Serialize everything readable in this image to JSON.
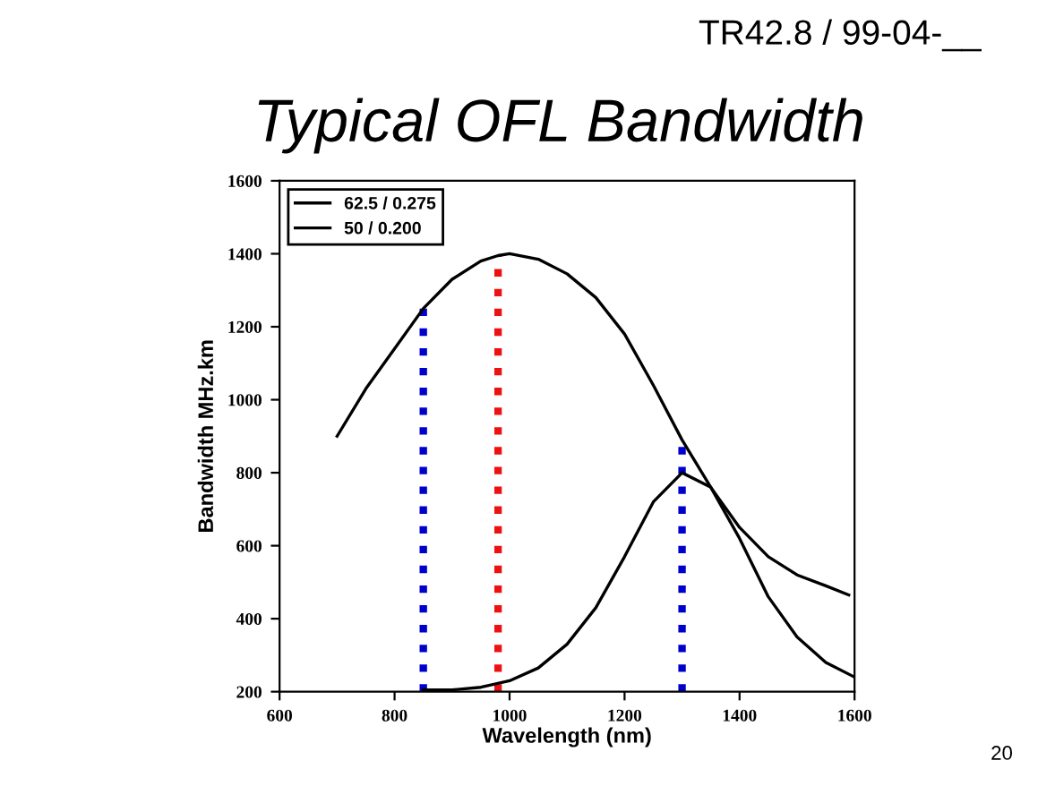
{
  "chart_data": {
    "type": "line",
    "title": "Typical OFL Bandwidth",
    "xlabel": "Wavelength (nm)",
    "ylabel": "Bandwidth MHz.km",
    "annotations": [
      "TR42.8 / 99-04-__",
      "20"
    ],
    "series": [
      {
        "name": "62.5 / 0.275",
        "color": "#000000",
        "x": [
          700,
          750,
          800,
          850,
          900,
          950,
          980,
          1000,
          1050,
          1100,
          1150,
          1200,
          1250,
          1300,
          1350,
          1400,
          1450,
          1500,
          1550,
          1590
        ],
        "values": [
          900,
          1030,
          1140,
          1250,
          1330,
          1380,
          1395,
          1400,
          1385,
          1345,
          1280,
          1180,
          1040,
          890,
          760,
          650,
          570,
          520,
          490,
          465
        ]
      },
      {
        "name": "50 / 0.200",
        "color": "#000000",
        "x": [
          850,
          900,
          950,
          1000,
          1050,
          1100,
          1150,
          1200,
          1250,
          1300,
          1350,
          1400,
          1450,
          1500,
          1550,
          1600
        ],
        "values": [
          205,
          205,
          212,
          230,
          265,
          330,
          430,
          570,
          720,
          800,
          760,
          620,
          460,
          350,
          280,
          240
        ]
      }
    ],
    "ref_lines": [
      {
        "axis": "x",
        "value": 850,
        "color": "#0000cc",
        "line_style": "dotted"
      },
      {
        "axis": "x",
        "value": 980,
        "color": "#ee1111",
        "line_style": "dotted"
      },
      {
        "axis": "x",
        "value": 1300,
        "color": "#0000cc",
        "line_style": "dotted"
      }
    ],
    "xlim": [
      600,
      1600
    ],
    "xticks": [
      600,
      800,
      1000,
      1200,
      1400,
      1600
    ],
    "ylim": [
      200,
      1600
    ],
    "yticks": [
      200,
      400,
      600,
      800,
      1000,
      1200,
      1400,
      1600
    ],
    "grid": false,
    "legend": "top left",
    "marker": "none",
    "line_style": "solid"
  }
}
